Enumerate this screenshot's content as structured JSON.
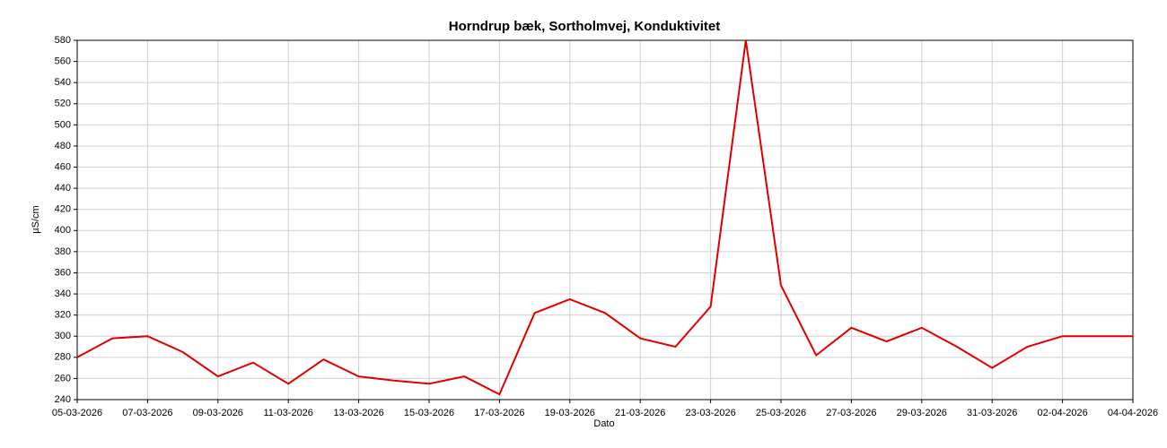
{
  "chart_data": {
    "type": "line",
    "title": "Horndrup bæk, Sortholmvej, Konduktivitet",
    "x_label": "Dato",
    "y_label": "µS/cm",
    "x": [
      "2026-03-05",
      "2026-03-06",
      "2026-03-07",
      "2026-03-08",
      "2026-03-09",
      "2026-03-10",
      "2026-03-11",
      "2026-03-12",
      "2026-03-13",
      "2026-03-14",
      "2026-03-15",
      "2026-03-16",
      "2026-03-17",
      "2026-03-18",
      "2026-03-19",
      "2026-03-20",
      "2026-03-21",
      "2026-03-22",
      "2026-03-23",
      "2026-03-24",
      "2026-03-25",
      "2026-03-26",
      "2026-03-27",
      "2026-03-28",
      "2026-03-29",
      "2026-03-30",
      "2026-03-31",
      "2026-04-01",
      "2026-04-02",
      "2026-04-03",
      "2026-04-04"
    ],
    "series": [
      {
        "name": "Konduktivitet",
        "color": "#e00000",
        "values": [
          280,
          298,
          300,
          285,
          262,
          275,
          255,
          278,
          262,
          258,
          255,
          262,
          245,
          322,
          335,
          322,
          298,
          290,
          328,
          580,
          348,
          282,
          308,
          295,
          308,
          290,
          270,
          290,
          300,
          300,
          300
        ]
      }
    ],
    "xlim": [
      "2026-03-05",
      "2026-04-04"
    ],
    "xticks": [
      {
        "value": "2026-03-05",
        "label": "05-03-2026"
      },
      {
        "value": "2026-03-07",
        "label": "07-03-2026"
      },
      {
        "value": "2026-03-09",
        "label": "09-03-2026"
      },
      {
        "value": "2026-03-11",
        "label": "11-03-2026"
      },
      {
        "value": "2026-03-13",
        "label": "13-03-2026"
      },
      {
        "value": "2026-03-15",
        "label": "15-03-2026"
      },
      {
        "value": "2026-03-17",
        "label": "17-03-2026"
      },
      {
        "value": "2026-03-19",
        "label": "19-03-2026"
      },
      {
        "value": "2026-03-21",
        "label": "21-03-2026"
      },
      {
        "value": "2026-03-23",
        "label": "23-03-2026"
      },
      {
        "value": "2026-03-25",
        "label": "25-03-2026"
      },
      {
        "value": "2026-03-27",
        "label": "27-03-2026"
      },
      {
        "value": "2026-03-29",
        "label": "29-03-2026"
      },
      {
        "value": "2026-03-31",
        "label": "31-03-2026"
      },
      {
        "value": "2026-04-02",
        "label": "02-04-2026"
      },
      {
        "value": "2026-04-04",
        "label": "04-04-2026"
      }
    ],
    "ylim": [
      240,
      580
    ],
    "yticks": [
      240,
      260,
      280,
      300,
      320,
      340,
      360,
      380,
      400,
      420,
      440,
      460,
      480,
      500,
      520,
      540,
      560,
      580
    ],
    "grid": true
  }
}
